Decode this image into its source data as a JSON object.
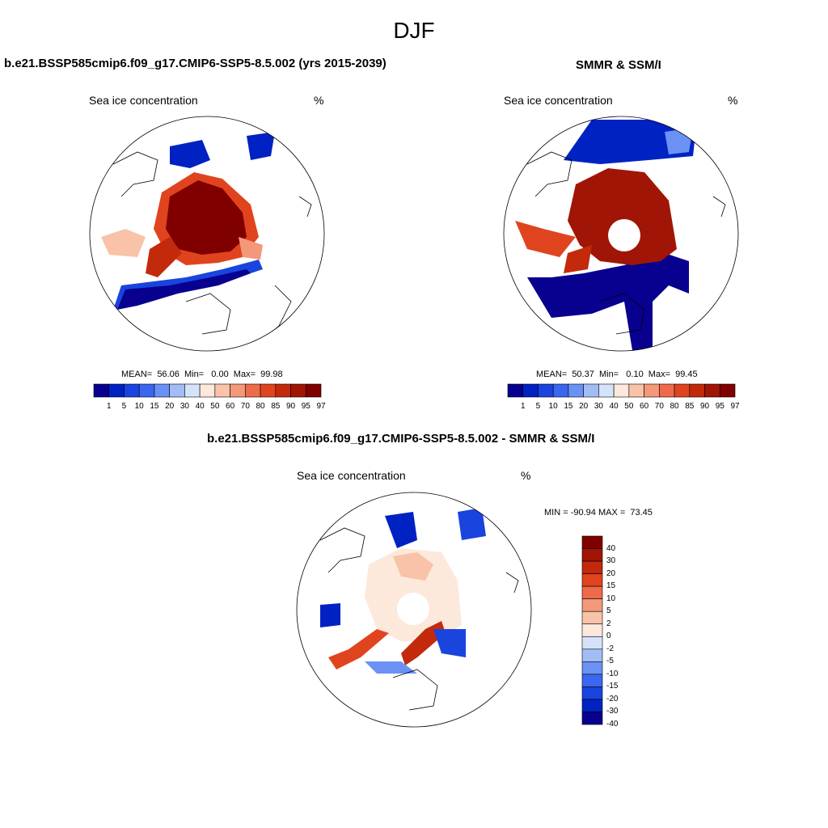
{
  "page_title": "DJF",
  "colors": {
    "ice_levels": [
      "#08008f",
      "#0022c2",
      "#1a44de",
      "#3a66f0",
      "#6a92f5",
      "#a2bdf5",
      "#d5e3fa",
      "#fde8dc",
      "#f8c3a8",
      "#f4987a",
      "#ef6a4a",
      "#e0441f",
      "#c22a0b",
      "#a01505",
      "#800000"
    ],
    "diff_levels": [
      "#08008f",
      "#0022c2",
      "#1a44de",
      "#3a66f0",
      "#6a92f5",
      "#a2bdf5",
      "#d5e3fa",
      "#fde8dc",
      "#f8c3a8",
      "#f4987a",
      "#ef6a4a",
      "#e0441f",
      "#c22a0b",
      "#a01505",
      "#800000"
    ]
  },
  "panels": {
    "model": {
      "title": "b.e21.BSSP585cmip6.f09_g17.CMIP6-SSP5-8.5.002 (yrs 2015-2039)",
      "variable": "Sea ice concentration",
      "unit": "%",
      "stats": "MEAN=  56.06  Min=   0.00  Max=  99.98"
    },
    "obs": {
      "title": "SMMR & SSM/I",
      "variable": "Sea ice concentration",
      "unit": "%",
      "stats": "MEAN=  50.37  Min=   0.10  Max=  99.45"
    },
    "diff": {
      "title": "b.e21.BSSP585cmip6.f09_g17.CMIP6-SSP5-8.5.002 - SMMR & SSM/I",
      "variable": "Sea ice concentration",
      "unit": "%",
      "stats": "MIN = -90.94 MAX =  73.45"
    }
  },
  "ice_colorbar_labels": [
    "1",
    "5",
    "10",
    "15",
    "20",
    "30",
    "40",
    "50",
    "60",
    "70",
    "80",
    "85",
    "90",
    "95",
    "97"
  ],
  "diff_colorbar_labels": [
    "40",
    "30",
    "20",
    "15",
    "10",
    "5",
    "2",
    "0",
    "-2",
    "-5",
    "-10",
    "-15",
    "-20",
    "-30",
    "-40"
  ]
}
